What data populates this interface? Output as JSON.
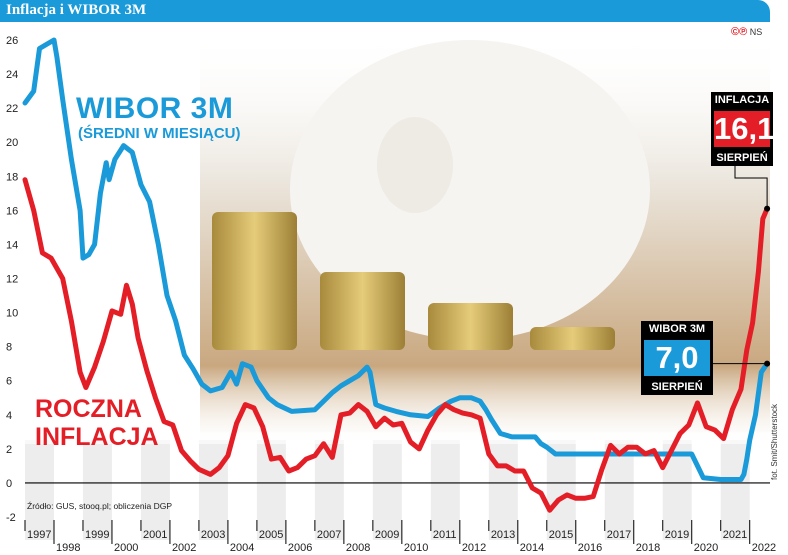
{
  "header": {
    "title": "Inflacja i WIBOR 3M"
  },
  "publisher": {
    "marks": "©℗",
    "initials": "NS"
  },
  "photo_credit": "fot. Smit/Shutterstock",
  "source": "Źródło: GUS, stooq.pl; obliczenia DGP",
  "labels": {
    "wibor_main": "WIBOR 3M",
    "wibor_sub": "(ŚREDNI W MIESIĄCU)",
    "inflation_line1": "ROCZNA",
    "inflation_line2": "INFLACJA"
  },
  "callouts": {
    "inflation": {
      "caption_top": "INFLACJA",
      "value": "16,1",
      "caption_bottom": "SIERPIEŃ"
    },
    "wibor": {
      "caption_top": "WIBOR 3M",
      "value": "7,0",
      "caption_bottom": "SIERPIEŃ"
    }
  },
  "colors": {
    "inflation": "#e41e26",
    "wibor": "#1a9ad8",
    "header": "#1a9ad8",
    "background_photo": "#eae4da"
  },
  "chart_data": {
    "type": "line",
    "xlim": [
      1997,
      2022.7
    ],
    "ylim": [
      -2,
      26
    ],
    "y_ticks": [
      -2,
      0,
      2,
      4,
      6,
      8,
      10,
      12,
      14,
      16,
      18,
      20,
      22,
      24,
      26
    ],
    "x_ticks_top_row": [
      "1997",
      "1999",
      "2001",
      "2003",
      "2005",
      "2007",
      "2009",
      "2011",
      "2013",
      "2015",
      "2017",
      "2019",
      "2021"
    ],
    "x_ticks_bottom_row": [
      "1998",
      "2000",
      "2002",
      "2004",
      "2006",
      "2008",
      "2010",
      "2012",
      "2014",
      "2016",
      "2018",
      "2020",
      "2022"
    ],
    "grid": false,
    "series": [
      {
        "name": "WIBOR 3M",
        "color": "#1a9ad8",
        "x": [
          1997.0,
          1997.3,
          1997.5,
          1997.8,
          1998.0,
          1998.1,
          1998.3,
          1998.6,
          1998.9,
          1999.0,
          1999.2,
          1999.4,
          1999.6,
          1999.8,
          1999.9,
          2000.1,
          2000.4,
          2000.7,
          2001.0,
          2001.3,
          2001.6,
          2001.9,
          2002.2,
          2002.5,
          2002.8,
          2003.1,
          2003.4,
          2003.8,
          2004.1,
          2004.3,
          2004.5,
          2004.8,
          2005.0,
          2005.4,
          2005.7,
          2006.2,
          2007.0,
          2007.3,
          2007.6,
          2007.9,
          2008.2,
          2008.5,
          2008.8,
          2008.9,
          2009.1,
          2009.4,
          2009.8,
          2010.3,
          2010.9,
          2011.3,
          2011.7,
          2012.0,
          2012.4,
          2012.7,
          2012.9,
          2013.1,
          2013.4,
          2013.8,
          2014.3,
          2014.6,
          2014.8,
          2015.0,
          2015.3,
          2017.0,
          2019.0,
          2019.5,
          2020.0,
          2020.2,
          2020.4,
          2021.0,
          2021.4,
          2021.7,
          2021.8,
          2021.9,
          2022.0,
          2022.2,
          2022.4,
          2022.6
        ],
        "y": [
          22.3,
          23.0,
          25.5,
          25.8,
          26.0,
          25.0,
          22.5,
          19.0,
          16.0,
          13.2,
          13.4,
          14.0,
          17.0,
          18.8,
          17.8,
          19.0,
          19.8,
          19.4,
          17.5,
          16.5,
          14.0,
          11.0,
          9.5,
          7.5,
          6.7,
          5.8,
          5.4,
          5.6,
          6.5,
          5.8,
          7.0,
          6.8,
          6.0,
          5.0,
          4.6,
          4.2,
          4.3,
          4.8,
          5.3,
          5.7,
          6.0,
          6.3,
          6.8,
          6.5,
          4.6,
          4.4,
          4.2,
          4.0,
          3.9,
          4.4,
          4.8,
          5.0,
          5.0,
          4.8,
          4.3,
          3.7,
          2.9,
          2.7,
          2.7,
          2.7,
          2.3,
          2.1,
          1.7,
          1.7,
          1.7,
          1.7,
          1.7,
          1.0,
          0.3,
          0.2,
          0.2,
          0.2,
          0.5,
          1.4,
          2.5,
          4.0,
          6.5,
          7.0
        ]
      },
      {
        "name": "ROCZNA INFLACJA",
        "color": "#e41e26",
        "x": [
          1997.0,
          1997.3,
          1997.6,
          1997.9,
          1998.3,
          1998.6,
          1998.9,
          1999.1,
          1999.4,
          1999.7,
          2000.0,
          2000.3,
          2000.5,
          2000.7,
          2000.9,
          2001.2,
          2001.5,
          2001.8,
          2002.1,
          2002.4,
          2002.7,
          2003.0,
          2003.4,
          2003.7,
          2004.0,
          2004.3,
          2004.6,
          2004.9,
          2005.2,
          2005.5,
          2005.8,
          2006.1,
          2006.4,
          2006.7,
          2007.0,
          2007.3,
          2007.6,
          2007.9,
          2008.2,
          2008.5,
          2008.8,
          2009.1,
          2009.4,
          2009.7,
          2010.0,
          2010.3,
          2010.6,
          2010.9,
          2011.2,
          2011.5,
          2011.8,
          2012.1,
          2012.4,
          2012.7,
          2013.0,
          2013.3,
          2013.6,
          2013.9,
          2014.2,
          2014.5,
          2014.8,
          2015.1,
          2015.4,
          2015.7,
          2016.0,
          2016.3,
          2016.6,
          2016.9,
          2017.2,
          2017.5,
          2017.8,
          2018.1,
          2018.4,
          2018.7,
          2019.0,
          2019.3,
          2019.6,
          2019.9,
          2020.2,
          2020.5,
          2020.8,
          2021.1,
          2021.4,
          2021.7,
          2021.9,
          2022.1,
          2022.3,
          2022.45,
          2022.6
        ],
        "y": [
          17.8,
          16.0,
          13.5,
          13.2,
          12.0,
          9.5,
          6.5,
          5.6,
          6.8,
          8.3,
          10.1,
          9.9,
          11.6,
          10.5,
          8.5,
          6.6,
          5.0,
          3.6,
          3.4,
          1.9,
          1.3,
          0.8,
          0.5,
          0.9,
          1.6,
          3.5,
          4.6,
          4.4,
          3.3,
          1.4,
          1.5,
          0.7,
          0.9,
          1.4,
          1.6,
          2.3,
          1.5,
          4.0,
          4.1,
          4.6,
          4.2,
          3.3,
          3.8,
          3.4,
          3.5,
          2.4,
          2.0,
          3.1,
          4.0,
          4.6,
          4.3,
          4.1,
          4.0,
          3.8,
          1.7,
          1.0,
          1.0,
          0.7,
          0.7,
          -0.3,
          -0.6,
          -1.6,
          -1.0,
          -0.7,
          -0.9,
          -0.9,
          -0.8,
          0.8,
          2.2,
          1.7,
          2.1,
          2.1,
          1.7,
          1.9,
          0.9,
          1.9,
          2.9,
          3.4,
          4.7,
          3.3,
          3.1,
          2.6,
          4.3,
          5.5,
          7.8,
          9.4,
          12.4,
          15.5,
          16.1
        ]
      }
    ]
  }
}
